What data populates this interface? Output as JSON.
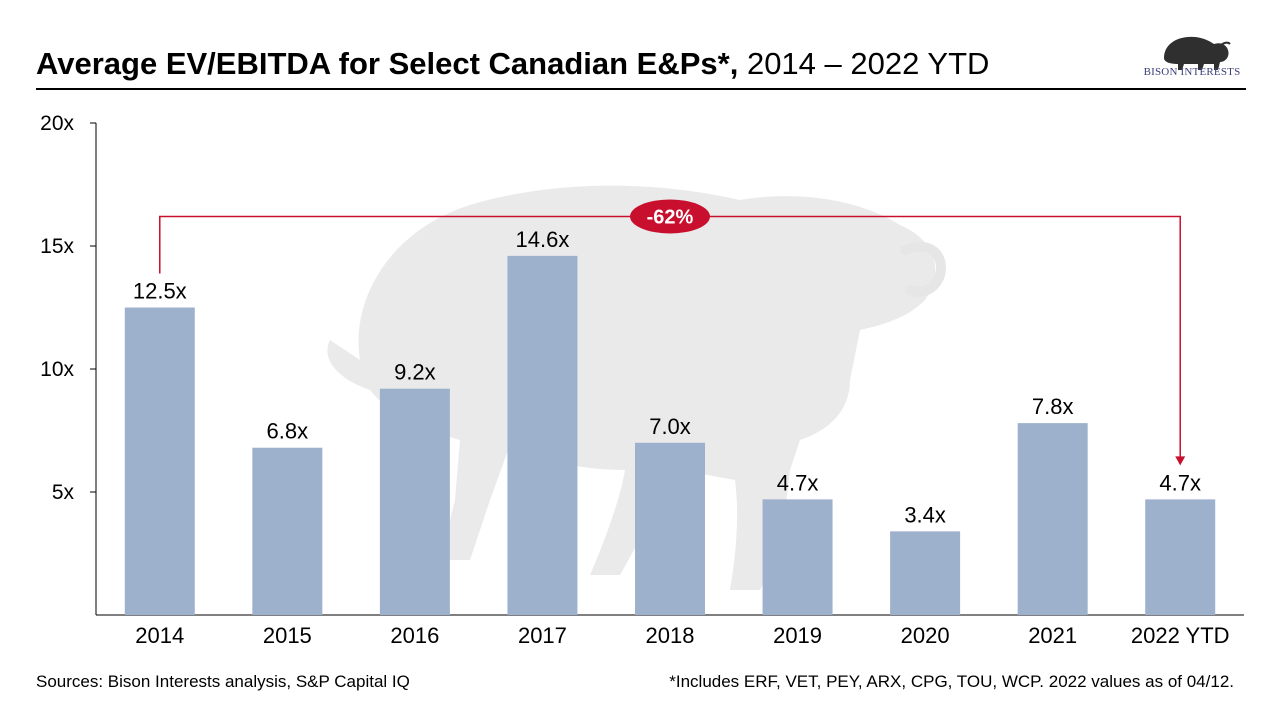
{
  "header": {
    "title_bold": "Average EV/EBITDA for Select Canadian E&Ps*,",
    "title_regular": "2014 – 2022 YTD",
    "logo_text": "BISON INTERESTS",
    "logo_icon": "bison-icon"
  },
  "colors": {
    "bar": "#9db1cc",
    "annotation": "#c8102e",
    "watermark": "#e6e6e6"
  },
  "chart_data": {
    "type": "bar",
    "title": "Average EV/EBITDA for Select Canadian E&Ps*, 2014 – 2022 YTD",
    "categories": [
      "2014",
      "2015",
      "2016",
      "2017",
      "2018",
      "2019",
      "2020",
      "2021",
      "2022 YTD"
    ],
    "values": [
      12.5,
      6.8,
      9.2,
      14.6,
      7.0,
      4.7,
      3.4,
      7.8,
      4.7
    ],
    "labels": [
      "12.5x",
      "6.8x",
      "9.2x",
      "14.6x",
      "7.0x",
      "4.7x",
      "3.4x",
      "7.8x",
      "4.7x"
    ],
    "ylim": [
      0,
      20
    ],
    "yticks": [
      5,
      10,
      15,
      20
    ],
    "ytick_labels": [
      "5x",
      "10x",
      "15x",
      "20x"
    ],
    "xlabel": "",
    "ylabel": "",
    "grid": false,
    "annotation": {
      "text": "-62%",
      "from_category": "2014",
      "to_category": "2022 YTD",
      "level": 16.2
    }
  },
  "footer": {
    "sources": "Sources: Bison Interests analysis, S&P Capital IQ",
    "note": "*Includes ERF, VET, PEY, ARX, CPG, TOU, WCP. 2022 values as of 04/12."
  }
}
